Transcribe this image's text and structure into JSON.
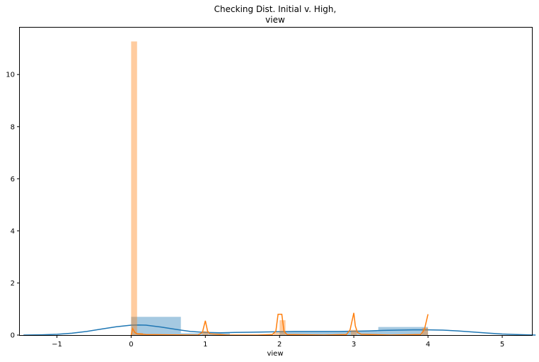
{
  "chart_data": {
    "type": "bar",
    "title_lines": [
      "Checking Dist. Initial v. High,",
      "view"
    ],
    "xlabel": "view",
    "ylabel": "",
    "xlim": [
      -1.5,
      5.4
    ],
    "ylim": [
      0,
      11.8
    ],
    "xticks": [
      -1,
      0,
      1,
      2,
      3,
      4,
      5
    ],
    "xtick_labels": [
      "−1",
      "0",
      "1",
      "2",
      "3",
      "4",
      "5"
    ],
    "yticks": [
      0,
      2,
      4,
      6,
      8,
      10
    ],
    "ytick_labels": [
      "0",
      "2",
      "4",
      "6",
      "8",
      "10"
    ],
    "grid": false,
    "colors": {
      "series1": "#1f77b4",
      "series2": "#ff7f0e"
    },
    "series": [
      {
        "kind": "hist",
        "color": "#1f77b4",
        "bins": [
          {
            "x0": 0.0,
            "x1": 0.67,
            "h": 0.7
          },
          {
            "x0": 0.67,
            "x1": 1.33,
            "h": 0.07
          },
          {
            "x0": 1.33,
            "x1": 2.0,
            "h": 0.0
          },
          {
            "x0": 2.0,
            "x1": 2.67,
            "h": 0.15
          },
          {
            "x0": 2.67,
            "x1": 3.33,
            "h": 0.15
          },
          {
            "x0": 3.33,
            "x1": 4.0,
            "h": 0.31
          }
        ]
      },
      {
        "kind": "kde",
        "color": "#1f77b4",
        "points": [
          [
            -1.45,
            0.0
          ],
          [
            -1.2,
            0.01
          ],
          [
            -1.0,
            0.03
          ],
          [
            -0.8,
            0.07
          ],
          [
            -0.6,
            0.14
          ],
          [
            -0.4,
            0.23
          ],
          [
            -0.2,
            0.32
          ],
          [
            0.0,
            0.38
          ],
          [
            0.1,
            0.39
          ],
          [
            0.2,
            0.38
          ],
          [
            0.4,
            0.31
          ],
          [
            0.6,
            0.22
          ],
          [
            0.8,
            0.14
          ],
          [
            1.0,
            0.1
          ],
          [
            1.2,
            0.09
          ],
          [
            1.4,
            0.1
          ],
          [
            1.6,
            0.11
          ],
          [
            1.8,
            0.12
          ],
          [
            2.0,
            0.13
          ],
          [
            2.2,
            0.14
          ],
          [
            2.4,
            0.14
          ],
          [
            2.6,
            0.14
          ],
          [
            2.8,
            0.14
          ],
          [
            3.0,
            0.15
          ],
          [
            3.2,
            0.16
          ],
          [
            3.4,
            0.18
          ],
          [
            3.6,
            0.19
          ],
          [
            3.8,
            0.2
          ],
          [
            4.0,
            0.2
          ],
          [
            4.2,
            0.19
          ],
          [
            4.4,
            0.16
          ],
          [
            4.6,
            0.12
          ],
          [
            4.8,
            0.08
          ],
          [
            5.0,
            0.04
          ],
          [
            5.2,
            0.02
          ],
          [
            5.45,
            0.0
          ]
        ]
      },
      {
        "kind": "hist",
        "color": "#ff7f0e",
        "bins": [
          {
            "x0": 0.0,
            "x1": 0.08,
            "h": 11.27
          },
          {
            "x0": 0.08,
            "x1": 0.16,
            "h": 0.08
          },
          {
            "x0": 0.96,
            "x1": 1.04,
            "h": 0.16
          },
          {
            "x0": 1.92,
            "x1": 2.0,
            "h": 0.1
          },
          {
            "x0": 2.0,
            "x1": 2.08,
            "h": 0.57
          },
          {
            "x0": 2.96,
            "x1": 3.04,
            "h": 0.2
          },
          {
            "x0": 3.92,
            "x1": 4.0,
            "h": 0.27
          }
        ]
      },
      {
        "kind": "kde",
        "color": "#ff7f0e",
        "points": [
          [
            0.0,
            0.0
          ],
          [
            0.02,
            0.25
          ],
          [
            0.05,
            0.1
          ],
          [
            0.08,
            0.05
          ],
          [
            0.12,
            0.04
          ],
          [
            0.2,
            0.02
          ],
          [
            0.5,
            0.01
          ],
          [
            0.9,
            0.0
          ],
          [
            0.96,
            0.1
          ],
          [
            1.0,
            0.55
          ],
          [
            1.03,
            0.15
          ],
          [
            1.06,
            0.05
          ],
          [
            1.3,
            0.0
          ],
          [
            1.7,
            0.0
          ],
          [
            1.9,
            0.02
          ],
          [
            1.95,
            0.15
          ],
          [
            1.98,
            0.8
          ],
          [
            2.03,
            0.8
          ],
          [
            2.06,
            0.15
          ],
          [
            2.1,
            0.02
          ],
          [
            2.6,
            0.0
          ],
          [
            2.9,
            0.02
          ],
          [
            2.95,
            0.2
          ],
          [
            3.0,
            0.85
          ],
          [
            3.02,
            0.35
          ],
          [
            3.05,
            0.1
          ],
          [
            3.1,
            0.03
          ],
          [
            3.5,
            0.0
          ],
          [
            3.9,
            0.02
          ],
          [
            3.95,
            0.2
          ],
          [
            4.0,
            0.8
          ]
        ]
      }
    ]
  }
}
